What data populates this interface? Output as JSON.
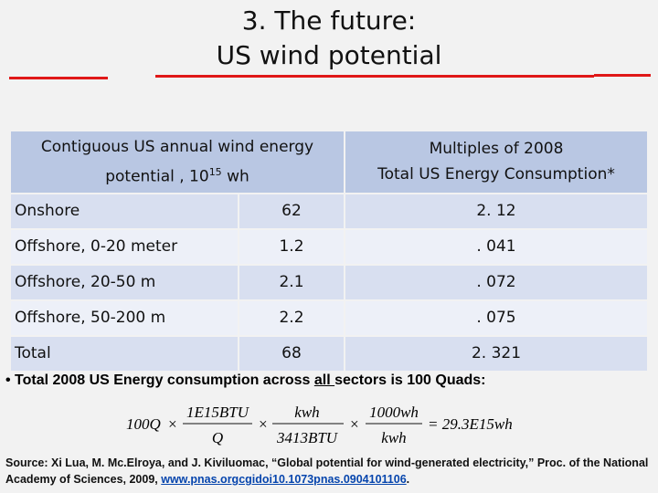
{
  "title": {
    "line1": "3. The future:",
    "line2": "US wind potential"
  },
  "table": {
    "header_left_pre": "Contiguous US annual wind energy potential , 10",
    "header_left_sup": "15",
    "header_left_post": " wh",
    "header_right_line1": "Multiples of 2008",
    "header_right_line2": "Total US Energy Consumption*",
    "rows": [
      {
        "label": "Onshore",
        "value": "62",
        "multiple": "2. 12"
      },
      {
        "label": "Offshore, 0-20 meter",
        "value": "1.2",
        "multiple": ". 041"
      },
      {
        "label": "Offshore, 20-50 m",
        "value": "2.1",
        "multiple": ". 072"
      },
      {
        "label": "Offshore, 50-200 m",
        "value": "2.2",
        "multiple": ". 075"
      },
      {
        "label": "Total",
        "value": "68",
        "multiple": "2. 321"
      }
    ]
  },
  "note": {
    "prefix": "• Total 2008 US Energy consumption across ",
    "emphasis": "all ",
    "suffix": "sectors is 100 Quads:"
  },
  "formula": {
    "t1": "100Q",
    "times1": "×",
    "f1_num": "1E15BTU",
    "f1_den": "Q",
    "times2": "×",
    "f2_num": "kwh",
    "f2_den": "3413BTU",
    "times3": "×",
    "f3_num": "1000wh",
    "f3_den": "kwh",
    "result": "= 29.3E15wh"
  },
  "source": {
    "text": "Source: Xi Lua, M. Mc.Elroya, and J. Kiviluomac, “Global potential for wind-generated electricity,” Proc. of the National Academy of Sciences, 2009, ",
    "link": "www.pnas.orgcgidoi10.1073pnas.0904101106",
    "tail": "."
  }
}
